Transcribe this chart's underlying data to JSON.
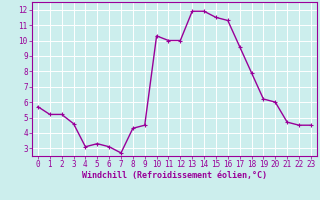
{
  "x": [
    0,
    1,
    2,
    3,
    4,
    5,
    6,
    7,
    8,
    9,
    10,
    11,
    12,
    13,
    14,
    15,
    16,
    17,
    18,
    19,
    20,
    21,
    22,
    23
  ],
  "y": [
    5.7,
    5.2,
    5.2,
    4.6,
    3.1,
    3.3,
    3.1,
    2.7,
    4.3,
    4.5,
    10.3,
    10.0,
    10.0,
    11.9,
    11.9,
    11.5,
    11.3,
    9.6,
    7.9,
    6.2,
    6.0,
    4.7,
    4.5,
    4.5
  ],
  "line_color": "#990099",
  "marker": "+",
  "marker_size": 3,
  "marker_edge_width": 0.8,
  "bg_color": "#cceeed",
  "grid_color": "#ffffff",
  "xlabel": "Windchill (Refroidissement éolien,°C)",
  "xlabel_color": "#990099",
  "tick_color": "#990099",
  "label_color": "#990099",
  "ylim": [
    2.5,
    12.5
  ],
  "xlim": [
    -0.5,
    23.5
  ],
  "yticks": [
    3,
    4,
    5,
    6,
    7,
    8,
    9,
    10,
    11,
    12
  ],
  "xticks": [
    0,
    1,
    2,
    3,
    4,
    5,
    6,
    7,
    8,
    9,
    10,
    11,
    12,
    13,
    14,
    15,
    16,
    17,
    18,
    19,
    20,
    21,
    22,
    23
  ],
  "tick_fontsize": 5.5,
  "ylabel_fontsize": 5.5,
  "xlabel_fontsize": 6.0,
  "line_width": 1.0
}
